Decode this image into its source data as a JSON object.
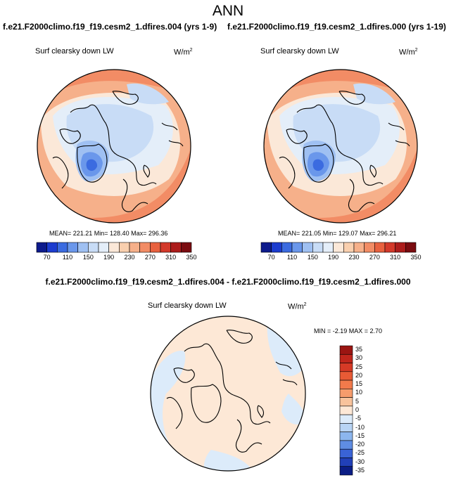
{
  "title": "ANN",
  "panels": [
    {
      "case_title": "f.e21.F2000climo.f19_f19.cesm2_1.dfires.004 (yrs 1-9)",
      "variable": "Surf clearsky down LW",
      "units": "W/m",
      "units_exp": "2",
      "stats": {
        "mean": "221.21",
        "min": "128.40",
        "max": "296.36"
      },
      "stats_text": "MEAN= 221.21  Min= 128.40  Max= 296.36"
    },
    {
      "case_title": "f.e21.F2000climo.f19_f19.cesm2_1.dfires.000 (yrs 1-19)",
      "variable": "Surf clearsky down LW",
      "units": "W/m",
      "units_exp": "2",
      "stats": {
        "mean": "221.05",
        "min": "129.07",
        "max": "296.21"
      },
      "stats_text": "MEAN= 221.05  Min= 129.07  Max= 296.21"
    }
  ],
  "abs_colorbar": {
    "labels": [
      "70",
      "110",
      "150",
      "190",
      "230",
      "270",
      "310",
      "350"
    ],
    "colors": [
      "#0d1b8c",
      "#1c3ccf",
      "#3b6be0",
      "#6a97eb",
      "#9fc0f2",
      "#c8dcf6",
      "#e4eef9",
      "#fbe8d8",
      "#f9cfae",
      "#f6b08a",
      "#f28c65",
      "#e8613f",
      "#d3392a",
      "#ac1c1b",
      "#7a0c10"
    ]
  },
  "difference": {
    "title": "f.e21.F2000climo.f19_f19.cesm2_1.dfires.004 - f.e21.F2000climo.f19_f19.cesm2_1.dfires.000",
    "variable": "Surf clearsky down LW",
    "units": "W/m",
    "units_exp": "2",
    "stats": {
      "min": "-2.19",
      "max": "2.70"
    },
    "stats_text": "MIN =  -2.19 MAX =   2.70",
    "colorbar": {
      "labels": [
        "35",
        "30",
        "25",
        "20",
        "15",
        "10",
        "5",
        "0",
        "-5",
        "-10",
        "-15",
        "-20",
        "-25",
        "-30",
        "-35"
      ],
      "colors": [
        "#9b1512",
        "#c0261c",
        "#d63a26",
        "#e85a35",
        "#f27a4b",
        "#f69c6c",
        "#f8c39c",
        "#fde8d6",
        "#dcebfa",
        "#b8d4f4",
        "#8cb6ee",
        "#5f8de3",
        "#3a63d6",
        "#2140b8",
        "#0b1d85"
      ]
    }
  }
}
